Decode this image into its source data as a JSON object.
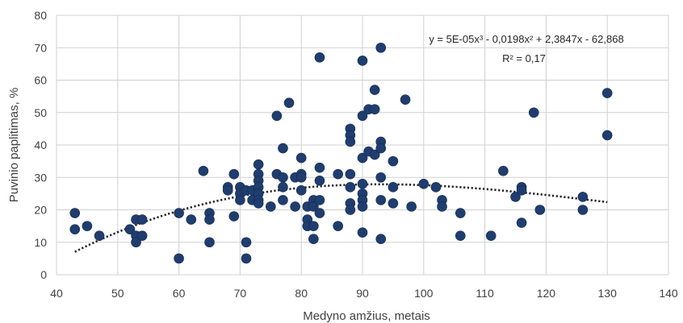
{
  "chart_data": {
    "type": "scatter",
    "xlabel": "Medyno amžius, metais",
    "ylabel": "Puvinio paplitimas, %",
    "xlim": [
      40,
      140
    ],
    "ylim": [
      0,
      80
    ],
    "xticks": [
      40,
      50,
      60,
      70,
      80,
      90,
      100,
      110,
      120,
      130,
      140
    ],
    "yticks": [
      0,
      10,
      20,
      30,
      40,
      50,
      60,
      70,
      80
    ],
    "grid": true,
    "marker_color": "#1f3d6e",
    "trendline": {
      "type": "polynomial",
      "degree": 3,
      "coefficients": [
        5e-05,
        -0.0198,
        2.3847,
        -62.868
      ],
      "x_range": [
        43,
        130
      ],
      "equation": "y = 5E-05x³ - 0,0198x² + 2,3847x - 62,868",
      "r_squared": "R² = 0,17"
    },
    "points": [
      [
        43,
        19
      ],
      [
        43,
        14
      ],
      [
        45,
        15
      ],
      [
        47,
        12
      ],
      [
        52,
        14
      ],
      [
        53,
        17
      ],
      [
        53,
        12
      ],
      [
        53,
        10
      ],
      [
        54,
        17
      ],
      [
        54,
        12
      ],
      [
        60,
        19
      ],
      [
        60,
        5
      ],
      [
        62,
        17
      ],
      [
        64,
        32
      ],
      [
        65,
        19
      ],
      [
        65,
        17
      ],
      [
        65,
        10
      ],
      [
        68,
        27
      ],
      [
        68,
        26
      ],
      [
        69,
        31
      ],
      [
        69,
        18
      ],
      [
        70,
        27
      ],
      [
        70,
        25
      ],
      [
        70,
        23
      ],
      [
        71,
        26
      ],
      [
        71,
        10
      ],
      [
        71,
        5
      ],
      [
        72,
        26
      ],
      [
        72,
        23
      ],
      [
        73,
        34
      ],
      [
        73,
        31
      ],
      [
        73,
        29
      ],
      [
        73,
        27
      ],
      [
        73,
        25
      ],
      [
        73,
        23
      ],
      [
        73,
        22
      ],
      [
        75,
        21
      ],
      [
        76,
        49
      ],
      [
        76,
        31
      ],
      [
        77,
        39
      ],
      [
        77,
        30
      ],
      [
        77,
        27
      ],
      [
        77,
        23
      ],
      [
        78,
        53
      ],
      [
        79,
        30
      ],
      [
        79,
        21
      ],
      [
        80,
        31
      ],
      [
        80,
        30
      ],
      [
        80,
        36
      ],
      [
        80,
        26
      ],
      [
        81,
        21
      ],
      [
        81,
        17
      ],
      [
        81,
        15
      ],
      [
        82,
        23
      ],
      [
        82,
        21
      ],
      [
        82,
        15
      ],
      [
        82,
        11
      ],
      [
        83,
        67
      ],
      [
        83,
        33
      ],
      [
        83,
        29
      ],
      [
        83,
        23
      ],
      [
        83,
        19
      ],
      [
        86,
        31
      ],
      [
        86,
        15
      ],
      [
        88,
        45
      ],
      [
        88,
        43
      ],
      [
        88,
        41
      ],
      [
        88,
        31
      ],
      [
        88,
        27
      ],
      [
        88,
        22
      ],
      [
        88,
        20
      ],
      [
        90,
        66
      ],
      [
        90,
        49
      ],
      [
        90,
        36
      ],
      [
        90,
        28
      ],
      [
        90,
        25
      ],
      [
        90,
        23
      ],
      [
        90,
        21
      ],
      [
        90,
        13
      ],
      [
        91,
        51
      ],
      [
        91,
        38
      ],
      [
        92,
        57
      ],
      [
        92,
        51
      ],
      [
        92,
        37
      ],
      [
        93,
        70
      ],
      [
        93,
        41
      ],
      [
        93,
        39
      ],
      [
        93,
        30
      ],
      [
        93,
        23
      ],
      [
        93,
        11
      ],
      [
        95,
        35
      ],
      [
        95,
        27
      ],
      [
        95,
        22
      ],
      [
        97,
        54
      ],
      [
        98,
        21
      ],
      [
        100,
        28
      ],
      [
        102,
        27
      ],
      [
        103,
        23
      ],
      [
        103,
        21
      ],
      [
        106,
        19
      ],
      [
        106,
        12
      ],
      [
        111,
        12
      ],
      [
        113,
        32
      ],
      [
        115,
        24
      ],
      [
        116,
        27
      ],
      [
        116,
        26
      ],
      [
        116,
        16
      ],
      [
        118,
        50
      ],
      [
        119,
        20
      ],
      [
        126,
        24
      ],
      [
        126,
        20
      ],
      [
        130,
        56
      ],
      [
        130,
        43
      ]
    ]
  }
}
